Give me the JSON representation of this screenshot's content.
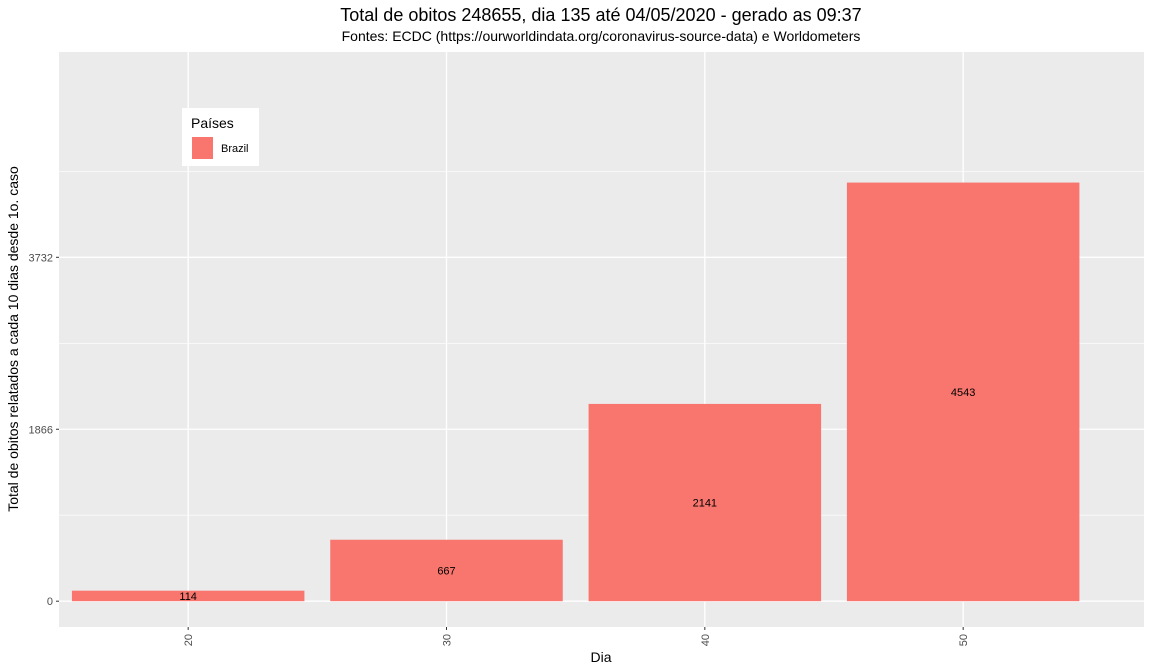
{
  "chart_data": {
    "type": "bar",
    "title": "Total de obitos 248655, dia 135 até 04/05/2020 - gerado as 09:37",
    "subtitle": "Fontes: ECDC (https://ourworldindata.org/coronavirus-source-data) e Worldometers",
    "xlabel": "Dia",
    "ylabel": "Total de obitos relatados a cada 10 dias desde 1o. caso",
    "categories": [
      20,
      30,
      40,
      50
    ],
    "series": [
      {
        "name": "Brazil",
        "values": [
          114,
          667,
          2141,
          4543
        ],
        "color": "#F8766D"
      }
    ],
    "data_labels": [
      "114",
      "667",
      "2141",
      "4543"
    ],
    "x_ticks": [
      "20",
      "30",
      "40",
      "50"
    ],
    "y_ticks": [
      0,
      1866,
      3732
    ],
    "y_tick_labels": [
      "0",
      "1866",
      "3732"
    ],
    "xlim": [
      15,
      57
    ],
    "ylim": [
      -280,
      5960
    ],
    "legend": {
      "title": "Países",
      "placement": "top-left inside"
    },
    "grid": true,
    "panel_background": "#EBEBEB",
    "grid_color": "#FFFFFF"
  }
}
